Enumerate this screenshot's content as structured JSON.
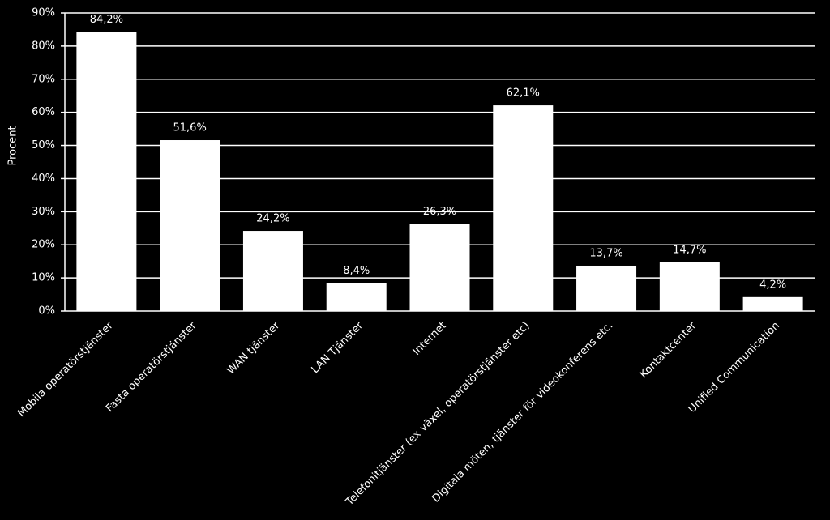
{
  "chart_data": {
    "type": "bar",
    "y_label": "Procent",
    "categories": [
      "Mobila operatörstjänster",
      "Fasta operatörstjänster",
      "WAN tjänster",
      "LAN Tjänster",
      "Internet",
      "Telefonitjänster (ex växel, operatörstjänster etc)",
      "Digitala möten, tjänster för videokonferens etc.",
      "Kontaktcenter",
      "Unified Communication"
    ],
    "values": [
      84.2,
      51.6,
      24.2,
      8.4,
      26.3,
      62.1,
      13.7,
      14.7,
      4.2
    ],
    "value_labels": [
      "84,2%",
      "51,6%",
      "24,2%",
      "8,4%",
      "26,3%",
      "62,1%",
      "13,7%",
      "14,7%",
      "4,2%"
    ],
    "color": "#ffffff",
    "ylim": [
      0,
      90
    ],
    "yticks": [
      {
        "value": 0,
        "label": "0%"
      },
      {
        "value": 10,
        "label": "10%"
      },
      {
        "value": 20,
        "label": "20%"
      },
      {
        "value": 30,
        "label": "30%"
      },
      {
        "value": 40,
        "label": "40%"
      },
      {
        "value": 50,
        "label": "50%"
      },
      {
        "value": 60,
        "label": "60%"
      },
      {
        "value": 70,
        "label": "70%"
      },
      {
        "value": 80,
        "label": "80%"
      },
      {
        "value": 90,
        "label": "90%"
      }
    ],
    "grid": true
  }
}
